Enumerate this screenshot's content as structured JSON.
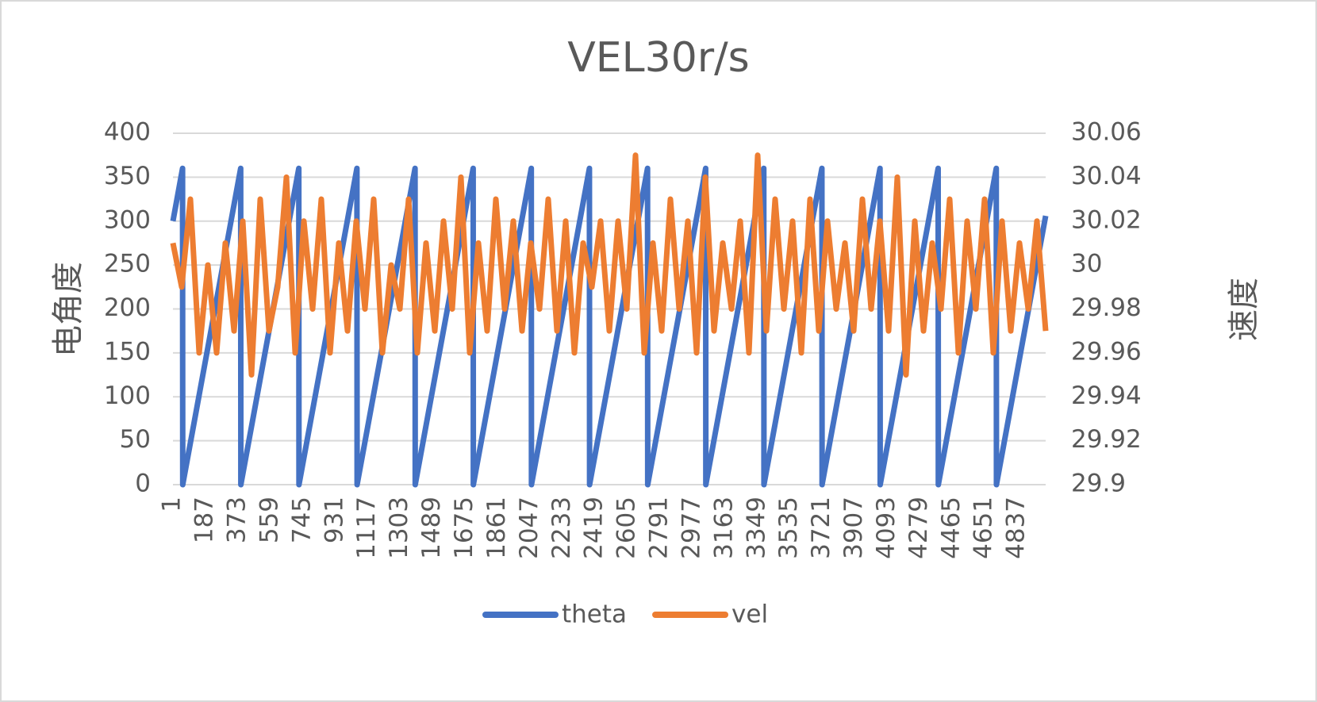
{
  "chart_data": {
    "type": "line",
    "title": "VEL30r/s",
    "ylabel": "电角度",
    "y2label": "速度",
    "xlim": [
      0,
      5000
    ],
    "xticks": [
      1,
      187,
      373,
      559,
      745,
      931,
      1117,
      1303,
      1489,
      1675,
      1861,
      2047,
      2233,
      2419,
      2605,
      2791,
      2977,
      3163,
      3349,
      3535,
      3721,
      3907,
      4093,
      4279,
      4465,
      4651,
      4837
    ],
    "ylim": [
      0,
      400
    ],
    "yticks": [
      0,
      50,
      100,
      150,
      200,
      250,
      300,
      350,
      400
    ],
    "y2lim": [
      29.9,
      30.06
    ],
    "y2ticks": [
      29.9,
      29.92,
      29.94,
      29.96,
      29.98,
      30,
      30.02,
      30.04,
      30.06
    ],
    "grid": true,
    "legend": "bottom",
    "series": [
      {
        "name": "theta",
        "color": "#4472c4",
        "x": [
          0,
          55,
          56,
          388,
          389,
          721,
          722,
          1054,
          1055,
          1387,
          1388,
          1720,
          1721,
          2053,
          2054,
          2386,
          2387,
          2719,
          2720,
          3052,
          3053,
          3385,
          3386,
          3718,
          3719,
          4051,
          4052,
          4384,
          4385,
          4717,
          4718,
          5000
        ],
        "values": [
          300,
          360,
          0,
          360,
          0,
          360,
          0,
          360,
          0,
          360,
          0,
          360,
          0,
          360,
          0,
          360,
          0,
          360,
          0,
          360,
          0,
          360,
          0,
          360,
          0,
          360,
          0,
          360,
          0,
          360,
          0,
          306
        ]
      },
      {
        "name": "vel",
        "color": "#ed7d31",
        "axis": "y2",
        "x": [
          0,
          50,
          100,
          150,
          200,
          250,
          300,
          350,
          400,
          450,
          500,
          550,
          600,
          650,
          700,
          750,
          800,
          850,
          900,
          950,
          1000,
          1050,
          1100,
          1150,
          1200,
          1250,
          1300,
          1350,
          1400,
          1450,
          1500,
          1550,
          1600,
          1650,
          1700,
          1750,
          1800,
          1850,
          1900,
          1950,
          2000,
          2050,
          2100,
          2150,
          2200,
          2250,
          2300,
          2350,
          2400,
          2450,
          2500,
          2550,
          2600,
          2650,
          2700,
          2750,
          2800,
          2850,
          2900,
          2950,
          3000,
          3050,
          3100,
          3150,
          3200,
          3250,
          3300,
          3350,
          3400,
          3450,
          3500,
          3550,
          3600,
          3650,
          3700,
          3750,
          3800,
          3850,
          3900,
          3950,
          4000,
          4050,
          4100,
          4150,
          4200,
          4250,
          4300,
          4350,
          4400,
          4450,
          4500,
          4550,
          4600,
          4650,
          4700,
          4750,
          4800,
          4850,
          4900,
          4950,
          5000
        ],
        "values": [
          30.01,
          29.99,
          30.03,
          29.96,
          30.0,
          29.96,
          30.01,
          29.97,
          30.02,
          29.95,
          30.03,
          29.97,
          29.99,
          30.04,
          29.96,
          30.02,
          29.98,
          30.03,
          29.96,
          30.01,
          29.97,
          30.02,
          29.98,
          30.03,
          29.96,
          30.0,
          29.98,
          30.03,
          29.96,
          30.01,
          29.97,
          30.02,
          29.98,
          30.04,
          29.96,
          30.01,
          29.97,
          30.03,
          29.98,
          30.02,
          29.97,
          30.01,
          29.98,
          30.03,
          29.97,
          30.02,
          29.96,
          30.01,
          29.99,
          30.02,
          29.97,
          30.02,
          29.98,
          30.05,
          29.96,
          30.01,
          29.97,
          30.03,
          29.98,
          30.02,
          29.96,
          30.04,
          29.97,
          30.01,
          29.98,
          30.02,
          29.96,
          30.05,
          29.97,
          30.03,
          29.98,
          30.02,
          29.96,
          30.03,
          29.97,
          30.02,
          29.98,
          30.01,
          29.97,
          30.03,
          29.98,
          30.02,
          29.97,
          30.04,
          29.95,
          30.02,
          29.97,
          30.01,
          29.98,
          30.03,
          29.96,
          30.02,
          29.98,
          30.03,
          29.96,
          30.02,
          29.97,
          30.01,
          29.98,
          30.02,
          29.97
        ]
      }
    ]
  }
}
